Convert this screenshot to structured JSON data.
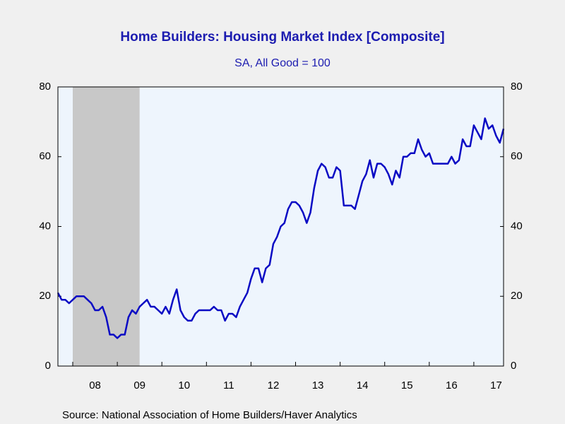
{
  "chart_data": {
    "type": "line",
    "title": "Home Builders: Housing Market Index  [Composite]",
    "subtitle": "SA, All Good = 100",
    "source": "Source:  National Association of Home Builders/Haver Analytics",
    "x": [
      2007.667,
      2007.75,
      2007.833,
      2007.917,
      2008,
      2008.083,
      2008.167,
      2008.25,
      2008.333,
      2008.417,
      2008.5,
      2008.583,
      2008.667,
      2008.75,
      2008.833,
      2008.917,
      2009,
      2009.083,
      2009.167,
      2009.25,
      2009.333,
      2009.417,
      2009.5,
      2009.583,
      2009.667,
      2009.75,
      2009.833,
      2009.917,
      2010,
      2010.083,
      2010.167,
      2010.25,
      2010.333,
      2010.417,
      2010.5,
      2010.583,
      2010.667,
      2010.75,
      2010.833,
      2010.917,
      2011,
      2011.083,
      2011.167,
      2011.25,
      2011.333,
      2011.417,
      2011.5,
      2011.583,
      2011.667,
      2011.75,
      2011.833,
      2011.917,
      2012,
      2012.083,
      2012.167,
      2012.25,
      2012.333,
      2012.417,
      2012.5,
      2012.583,
      2012.667,
      2012.75,
      2012.833,
      2012.917,
      2013,
      2013.083,
      2013.167,
      2013.25,
      2013.333,
      2013.417,
      2013.5,
      2013.583,
      2013.667,
      2013.75,
      2013.833,
      2013.917,
      2014,
      2014.083,
      2014.167,
      2014.25,
      2014.333,
      2014.417,
      2014.5,
      2014.583,
      2014.667,
      2014.75,
      2014.833,
      2014.917,
      2015,
      2015.083,
      2015.167,
      2015.25,
      2015.333,
      2015.417,
      2015.5,
      2015.583,
      2015.667,
      2015.75,
      2015.833,
      2015.917,
      2016,
      2016.083,
      2016.167,
      2016.25,
      2016.333,
      2016.417,
      2016.5,
      2016.583,
      2016.667,
      2016.75,
      2016.833,
      2016.917,
      2017,
      2017.083,
      2017.167,
      2017.25,
      2017.333,
      2017.417,
      2017.5,
      2017.583,
      2017.667
    ],
    "series": [
      {
        "name": "Housing Market Index",
        "color": "#0a0ac4",
        "values": [
          21,
          19,
          19,
          18,
          19,
          20,
          20,
          20,
          19,
          18,
          16,
          16,
          17,
          14,
          9,
          9,
          8,
          9,
          9,
          14,
          16,
          15,
          17,
          18,
          19,
          17,
          17,
          16,
          15,
          17,
          15,
          19,
          22,
          16,
          14,
          13,
          13,
          15,
          16,
          16,
          16,
          16,
          17,
          16,
          16,
          13,
          15,
          15,
          14,
          17,
          19,
          21,
          25,
          28,
          28,
          24,
          28,
          29,
          35,
          37,
          40,
          41,
          45,
          47,
          47,
          46,
          44,
          41,
          44,
          51,
          56,
          58,
          57,
          54,
          54,
          57,
          56,
          46,
          46,
          46,
          45,
          49,
          53,
          55,
          59,
          54,
          58,
          58,
          57,
          55,
          52,
          56,
          54,
          60,
          60,
          61,
          61,
          65,
          62,
          60,
          61,
          58,
          58,
          58,
          58,
          58,
          60,
          58,
          59,
          65,
          63,
          63,
          69,
          67,
          65,
          71,
          68,
          69,
          66,
          64,
          68
        ]
      }
    ],
    "xlim": [
      2007.667,
      2017.667
    ],
    "xticks": [
      2008,
      2009,
      2010,
      2011,
      2012,
      2013,
      2014,
      2015,
      2016,
      2017
    ],
    "year_labels": [
      {
        "value": 2008.5,
        "label": "08"
      },
      {
        "value": 2009.5,
        "label": "09"
      },
      {
        "value": 2010.5,
        "label": "10"
      },
      {
        "value": 2011.5,
        "label": "11"
      },
      {
        "value": 2012.5,
        "label": "12"
      },
      {
        "value": 2013.5,
        "label": "13"
      },
      {
        "value": 2014.5,
        "label": "14"
      },
      {
        "value": 2015.5,
        "label": "15"
      },
      {
        "value": 2016.5,
        "label": "16"
      },
      {
        "value": 2017.5,
        "label": "17"
      }
    ],
    "recession": [
      2008.0,
      2009.5
    ],
    "recession_color": "#c8c8c8",
    "ylim": [
      0,
      80
    ],
    "yticks": [
      0,
      20,
      40,
      60,
      80
    ],
    "y2lim": [
      0,
      80
    ],
    "y2ticks": [
      0,
      20,
      40,
      60,
      80
    ]
  }
}
